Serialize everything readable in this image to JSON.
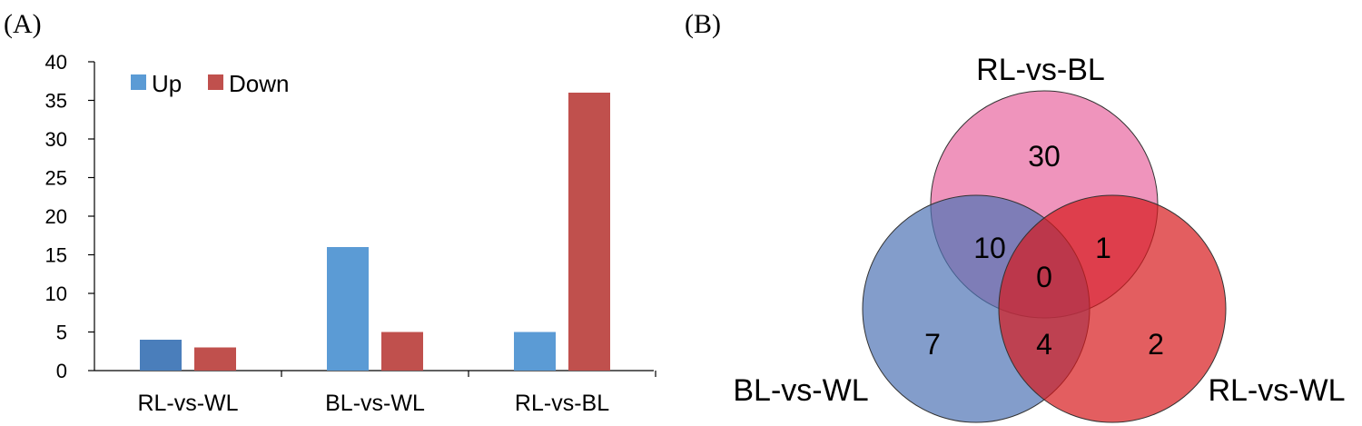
{
  "panels": {
    "a": "(A)",
    "b": "(B)"
  },
  "chart_data": [
    {
      "type": "bar",
      "panel": "(A)",
      "title": "",
      "xlabel": "",
      "ylabel": "",
      "categories": [
        "RL-vs-WL",
        "BL-vs-WL",
        "RL-vs-BL"
      ],
      "series": [
        {
          "name": "Up",
          "values": [
            4,
            16,
            5
          ],
          "color": "#5b9bd5",
          "first_bar_color": "#4a7ebb"
        },
        {
          "name": "Down",
          "values": [
            3,
            5,
            36
          ],
          "color": "#c0504d"
        }
      ],
      "ylim": [
        0,
        40
      ],
      "yticks": [
        0,
        5,
        10,
        15,
        20,
        25,
        30,
        35,
        40
      ],
      "grid": false,
      "legend": "top-left"
    },
    {
      "type": "venn",
      "panel": "(B)",
      "sets": [
        {
          "name": "RL-vs-BL",
          "color": "#e8679f"
        },
        {
          "name": "BL-vs-WL",
          "color": "#4f73b5"
        },
        {
          "name": "RL-vs-WL",
          "color": "#d7191c"
        }
      ],
      "regions": {
        "only_rl_vs_bl": 30,
        "rl_vs_bl_and_bl_vs_wl": 10,
        "rl_vs_bl_and_rl_vs_wl": 1,
        "all_three": 0,
        "only_bl_vs_wl": 7,
        "bl_vs_wl_and_rl_vs_wl": 4,
        "only_rl_vs_wl": 2
      }
    }
  ]
}
